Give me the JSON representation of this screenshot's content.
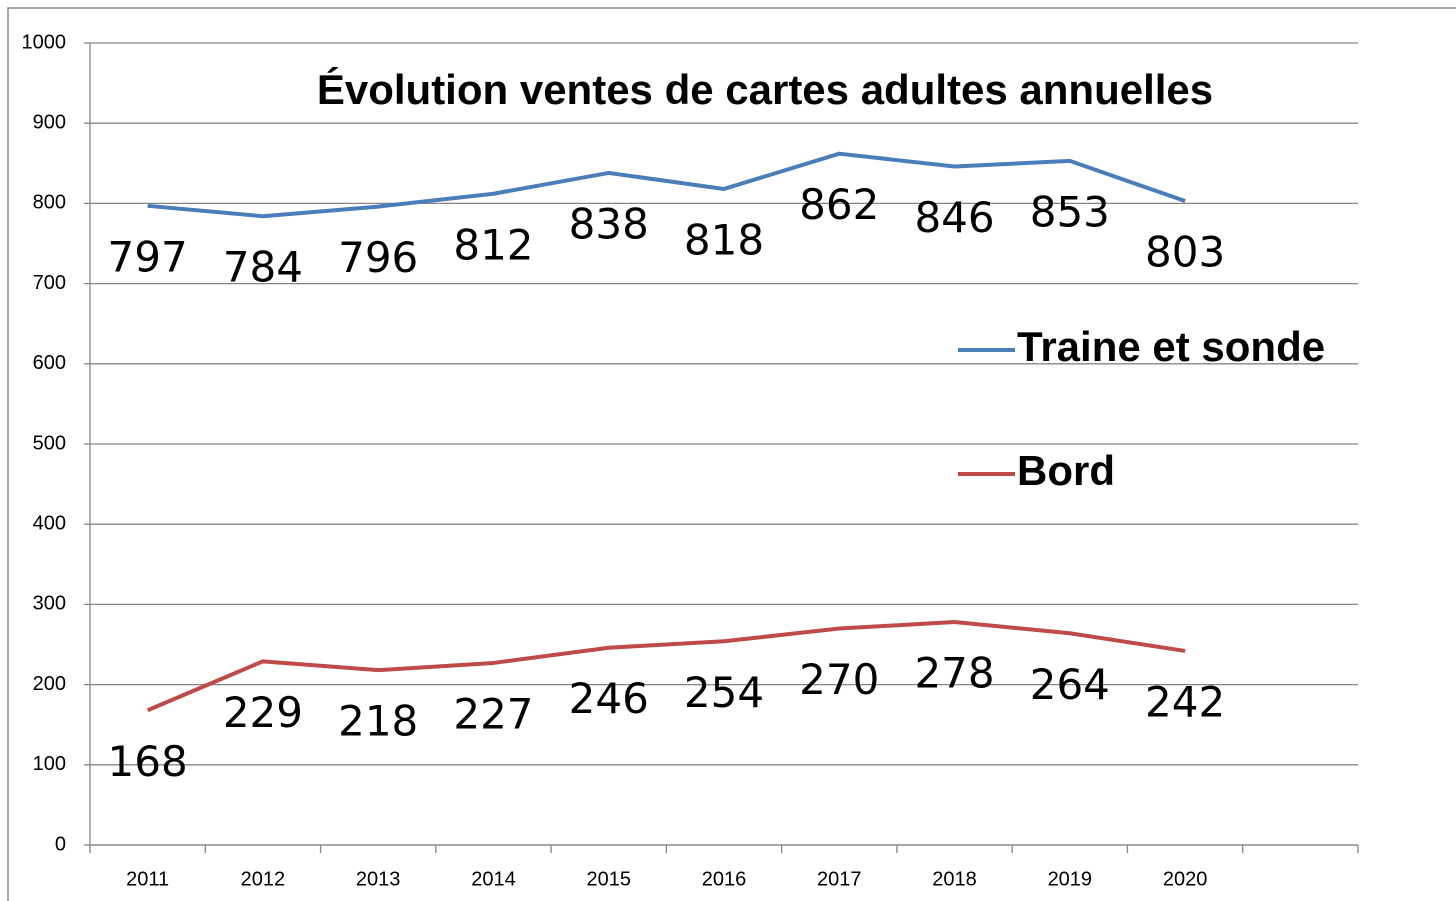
{
  "chart_data": {
    "type": "line",
    "title": "Évolution ventes de cartes adultes annuelles",
    "categories": [
      "2011",
      "2012",
      "2013",
      "2014",
      "2015",
      "2016",
      "2017",
      "2018",
      "2019",
      "2020",
      null
    ],
    "series": [
      {
        "name": "Traine et sonde",
        "color": "#4a7ebb",
        "values": [
          797,
          784,
          796,
          812,
          838,
          818,
          862,
          846,
          853,
          803,
          null
        ]
      },
      {
        "name": "Bord",
        "color": "#be4b48",
        "values": [
          168,
          229,
          218,
          227,
          246,
          254,
          270,
          278,
          264,
          242,
          null
        ]
      }
    ],
    "ylim": [
      0,
      1000
    ],
    "yticks": [
      0,
      100,
      200,
      300,
      400,
      500,
      600,
      700,
      800,
      900,
      1000
    ],
    "grid": true,
    "legend": "right"
  }
}
